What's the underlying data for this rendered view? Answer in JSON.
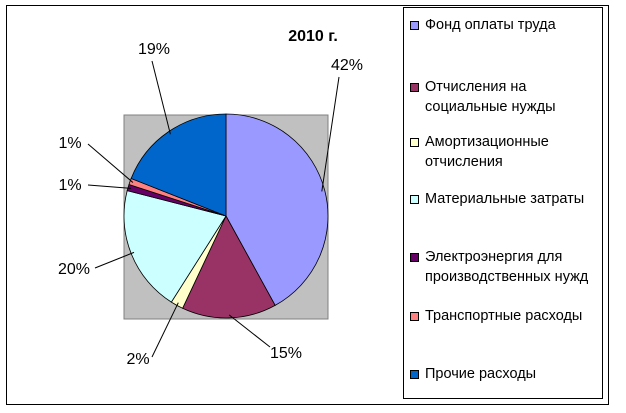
{
  "chart_data": {
    "type": "pie",
    "title": "2010 г.",
    "legend": "right",
    "slices": [
      {
        "name": "Фонд оплаты труда",
        "value": 42,
        "label": "42%",
        "color": "#9999ff"
      },
      {
        "name": "Отчисления на социальные нужды",
        "value": 15,
        "label": "15%",
        "color": "#993366"
      },
      {
        "name": "Амортизационные отчисления",
        "value": 2,
        "label": "2%",
        "color": "#ffffcc"
      },
      {
        "name": "Материальные затраты",
        "value": 20,
        "label": "20%",
        "color": "#ccffff"
      },
      {
        "name": "Электроэнергия для производственных нужд",
        "value": 1,
        "label": "1%",
        "color": "#660066"
      },
      {
        "name": "Транспортные расходы",
        "value": 1,
        "label": "1%",
        "color": "#ff8080"
      },
      {
        "name": "Прочие расходы",
        "value": 19,
        "label": "19%",
        "color": "#0066cc"
      }
    ]
  }
}
